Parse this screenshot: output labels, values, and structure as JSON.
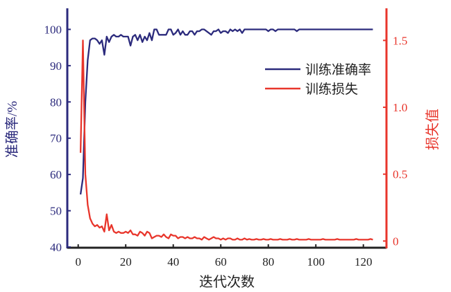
{
  "chart_data": {
    "type": "line",
    "xlabel": "迭代次数",
    "ylabel_left": "准确率/%",
    "ylabel_right": "损失值",
    "xlim": [
      0,
      130
    ],
    "ylim_left": [
      40,
      106
    ],
    "ylim_right": [
      -0.05,
      1.74
    ],
    "x_ticks": [
      0,
      20,
      40,
      60,
      80,
      100,
      120
    ],
    "x_tick_labels": [
      "0",
      "20",
      "40",
      "60",
      "80",
      "100",
      "120"
    ],
    "y_left_ticks": [
      40,
      50,
      60,
      70,
      80,
      90,
      100
    ],
    "y_left_tick_labels": [
      "40",
      "50",
      "60",
      "70",
      "80",
      "90",
      "100"
    ],
    "y_right_ticks": [
      0,
      0.5,
      1.0,
      1.5
    ],
    "y_right_tick_labels": [
      "0",
      "0.5",
      "1.0",
      "1.5"
    ],
    "grid": false,
    "legend_position": "top-right",
    "colors": {
      "accuracy": "#2b2a7c",
      "loss": "#e8352b",
      "axis": "#222222"
    },
    "x_start": 1,
    "x_step": 1,
    "series": [
      {
        "name": "训练准确率",
        "axis": "left",
        "values": [
          54.5,
          59,
          80,
          91.5,
          97,
          97.5,
          97.5,
          97,
          96,
          97,
          93,
          98,
          96.5,
          98,
          98.5,
          98,
          98,
          98.5,
          98,
          98,
          98,
          95.5,
          98,
          98.5,
          97,
          98.5,
          96.5,
          98,
          97,
          99,
          97,
          100,
          100,
          98.5,
          98.5,
          98.5,
          98.5,
          100,
          100,
          98.5,
          99,
          100,
          98.5,
          99.5,
          98.5,
          98.5,
          99.5,
          99.5,
          98.5,
          99.5,
          99.5,
          100,
          100,
          99.5,
          99,
          98.5,
          99.5,
          99.5,
          100,
          99,
          99.5,
          99.5,
          99,
          100,
          99.5,
          100,
          99.5,
          100,
          99,
          100,
          100,
          100,
          100,
          100,
          100,
          100,
          100,
          100,
          100,
          99.5,
          100,
          100,
          99.5,
          100,
          100,
          100,
          100,
          100,
          100,
          100,
          100,
          99.5,
          100,
          100,
          100,
          100,
          100,
          100,
          100,
          100,
          100,
          100,
          100,
          100,
          100,
          100,
          100,
          100,
          100,
          100,
          100,
          100,
          100,
          100,
          100,
          100,
          100,
          100,
          100,
          100,
          100,
          100,
          100,
          100
        ]
      },
      {
        "name": "训练损失",
        "axis": "right",
        "values": [
          0.66,
          1.5,
          0.5,
          0.27,
          0.17,
          0.13,
          0.11,
          0.12,
          0.1,
          0.11,
          0.07,
          0.2,
          0.08,
          0.12,
          0.07,
          0.06,
          0.07,
          0.06,
          0.06,
          0.07,
          0.06,
          0.08,
          0.05,
          0.05,
          0.04,
          0.07,
          0.06,
          0.04,
          0.07,
          0.06,
          0.02,
          0.03,
          0.04,
          0.04,
          0.03,
          0.05,
          0.03,
          0.02,
          0.05,
          0.04,
          0.04,
          0.02,
          0.03,
          0.03,
          0.02,
          0.03,
          0.02,
          0.02,
          0.03,
          0.02,
          0.02,
          0.01,
          0.03,
          0.02,
          0.01,
          0.02,
          0.03,
          0.02,
          0.02,
          0.01,
          0.02,
          0.01,
          0.02,
          0.02,
          0.01,
          0.01,
          0.02,
          0.01,
          0.01,
          0.02,
          0.01,
          0.015,
          0.01,
          0.01,
          0.015,
          0.01,
          0.01,
          0.015,
          0.01,
          0.01,
          0.015,
          0.01,
          0.01,
          0.01,
          0.015,
          0.01,
          0.01,
          0.01,
          0.015,
          0.01,
          0.01,
          0.015,
          0.01,
          0.01,
          0.01,
          0.01,
          0.015,
          0.01,
          0.01,
          0.01,
          0.01,
          0.01,
          0.015,
          0.01,
          0.01,
          0.01,
          0.01,
          0.01,
          0.015,
          0.01,
          0.01,
          0.01,
          0.01,
          0.01,
          0.01,
          0.01,
          0.015,
          0.01,
          0.01,
          0.01,
          0.01,
          0.01,
          0.015,
          0.01
        ]
      }
    ]
  }
}
